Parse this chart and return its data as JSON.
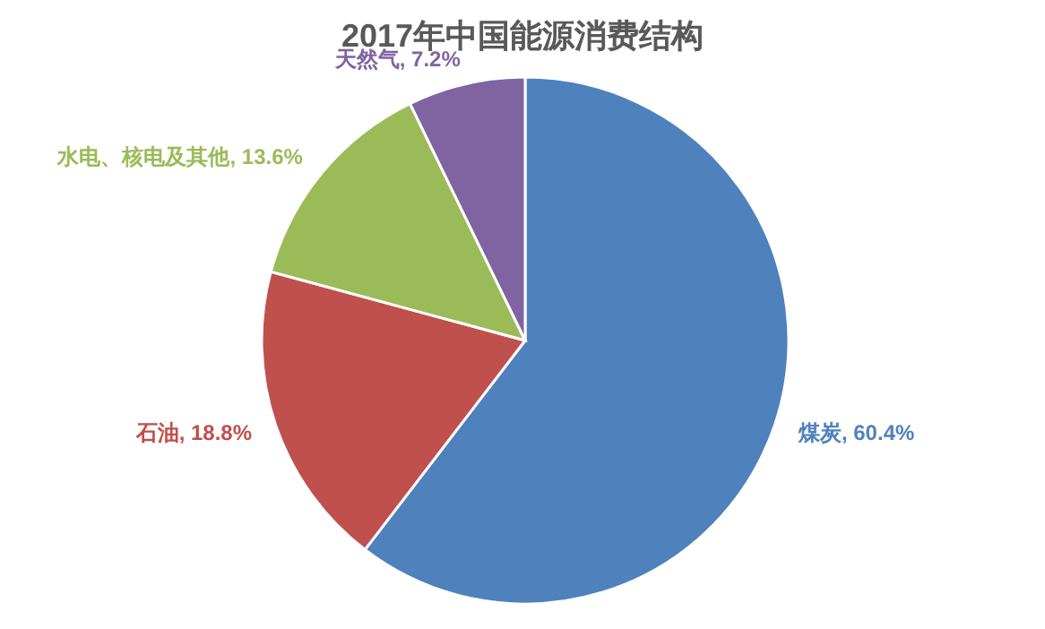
{
  "chart_data": {
    "type": "pie",
    "title": "2017年中国能源消费结构",
    "categories": [
      "煤炭",
      "石油",
      "水电、核电及其他",
      "天然气"
    ],
    "values": [
      60.4,
      18.8,
      13.6,
      7.2
    ],
    "colors": [
      "#4f81bd",
      "#c0504d",
      "#9bbb59",
      "#8064a2"
    ],
    "value_labels": [
      "60.4%",
      "18.8%",
      "13.6%",
      "7.2%"
    ]
  }
}
